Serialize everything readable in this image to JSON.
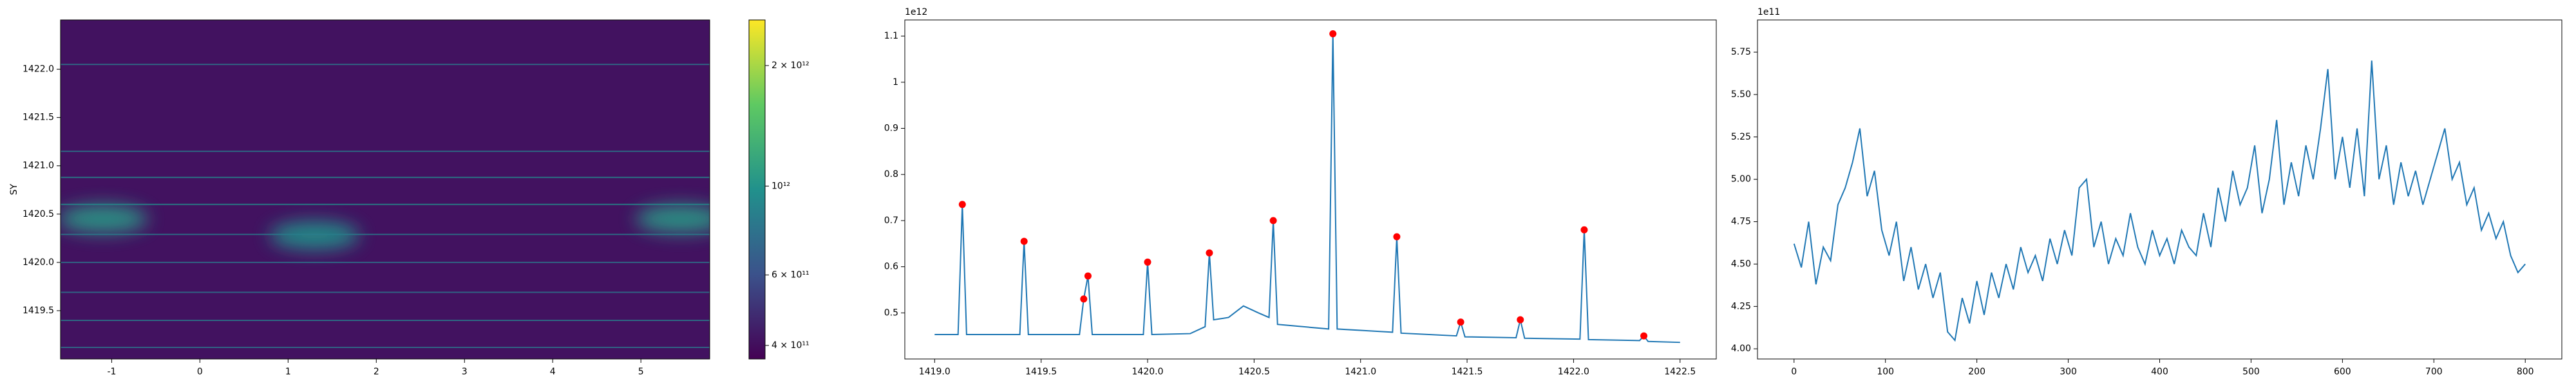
{
  "chart_data": [
    {
      "type": "heatmap",
      "ylabel": "SY",
      "xlim": [
        -1.58,
        5.78
      ],
      "ylim": [
        1419.0,
        1422.51
      ],
      "xticks": [
        -1,
        0,
        1,
        2,
        3,
        4,
        5
      ],
      "yticks": [
        {
          "value": 1419.5,
          "label": "1419.5"
        },
        {
          "value": 1420.0,
          "label": "1420.0"
        },
        {
          "value": 1420.5,
          "label": "1420.5"
        },
        {
          "value": 1421.0,
          "label": "1421.0"
        },
        {
          "value": 1421.5,
          "label": "1421.5"
        },
        {
          "value": 1422.0,
          "label": "1422.0"
        }
      ],
      "background": 410000000000,
      "lines": [
        {
          "y": 1422.05,
          "value": 800000000000
        },
        {
          "y": 1421.15,
          "value": 850000000000
        },
        {
          "y": 1420.88,
          "value": 900000000000
        },
        {
          "y": 1420.6,
          "value": 950000000000
        },
        {
          "y": 1420.29,
          "value": 850000000000
        },
        {
          "y": 1420.0,
          "value": 800000000000
        },
        {
          "y": 1419.69,
          "value": 800000000000
        },
        {
          "y": 1419.4,
          "value": 850000000000
        },
        {
          "y": 1419.12,
          "value": 800000000000
        }
      ],
      "blobs": [
        {
          "x": -1.1,
          "y": 1420.45,
          "value": 1050000000000
        },
        {
          "x": 1.3,
          "y": 1420.28,
          "value": 1000000000000
        },
        {
          "x": 5.45,
          "y": 1420.45,
          "value": 1050000000000
        }
      ],
      "colorbar": {
        "lim": [
          370000000000,
          2600000000000
        ],
        "scale": "log",
        "ticks": [
          {
            "value": 400000000000,
            "label": "4 × 10¹¹"
          },
          {
            "value": 600000000000,
            "label": "6 × 10¹¹"
          },
          {
            "value": 1000000000000,
            "label": "10¹²"
          },
          {
            "value": 2000000000000,
            "label": "2 × 10¹²"
          }
        ]
      }
    },
    {
      "type": "line",
      "color": "#1f77b4",
      "marker_color": "#ff0000",
      "y_offset_label": "1e12",
      "xlim": [
        1418.86,
        1422.67
      ],
      "ylim": [
        0.4,
        1.135
      ],
      "xticks": [
        {
          "value": 1419.0,
          "label": "1419.0"
        },
        {
          "value": 1419.5,
          "label": "1419.5"
        },
        {
          "value": 1420.0,
          "label": "1420.0"
        },
        {
          "value": 1420.5,
          "label": "1420.5"
        },
        {
          "value": 1421.0,
          "label": "1421.0"
        },
        {
          "value": 1421.5,
          "label": "1421.5"
        },
        {
          "value": 1422.0,
          "label": "1422.0"
        },
        {
          "value": 1422.5,
          "label": "1422.5"
        }
      ],
      "yticks": [
        0.5,
        0.6,
        0.7,
        0.8,
        0.9,
        1.0,
        1.1
      ],
      "x": [
        1419.0,
        1419.11,
        1419.13,
        1419.15,
        1419.4,
        1419.42,
        1419.44,
        1419.68,
        1419.7,
        1419.72,
        1419.74,
        1419.98,
        1420.0,
        1420.02,
        1420.2,
        1420.27,
        1420.29,
        1420.31,
        1420.38,
        1420.45,
        1420.52,
        1420.57,
        1420.59,
        1420.61,
        1420.85,
        1420.87,
        1420.89,
        1421.15,
        1421.17,
        1421.19,
        1421.45,
        1421.47,
        1421.49,
        1421.73,
        1421.75,
        1421.77,
        1422.03,
        1422.05,
        1422.07,
        1422.31,
        1422.33,
        1422.35,
        1422.5
      ],
      "values": [
        0.453,
        0.453,
        0.735,
        0.453,
        0.453,
        0.655,
        0.453,
        0.453,
        0.53,
        0.58,
        0.453,
        0.453,
        0.61,
        0.453,
        0.455,
        0.47,
        0.63,
        0.485,
        0.49,
        0.515,
        0.5,
        0.49,
        0.7,
        0.475,
        0.465,
        1.105,
        0.465,
        0.458,
        0.665,
        0.456,
        0.45,
        0.48,
        0.448,
        0.446,
        0.485,
        0.445,
        0.443,
        0.68,
        0.442,
        0.44,
        0.45,
        0.438,
        0.436
      ],
      "peaks": {
        "x": [
          1419.13,
          1419.42,
          1419.7,
          1419.72,
          1420.0,
          1420.29,
          1420.59,
          1420.87,
          1421.17,
          1421.47,
          1421.75,
          1422.05,
          1422.33
        ],
        "values": [
          0.735,
          0.655,
          0.53,
          0.58,
          0.61,
          0.63,
          0.7,
          1.105,
          0.665,
          0.48,
          0.485,
          0.68,
          0.45
        ]
      }
    },
    {
      "type": "line",
      "color": "#1f77b4",
      "y_offset_label": "1e11",
      "xlim": [
        -40,
        840
      ],
      "ylim": [
        3.94,
        5.94
      ],
      "xticks": [
        0,
        100,
        200,
        300,
        400,
        500,
        600,
        700,
        800
      ],
      "yticks": [
        {
          "value": 4.0,
          "label": "4.00"
        },
        {
          "value": 4.25,
          "label": "4.25"
        },
        {
          "value": 4.5,
          "label": "4.50"
        },
        {
          "value": 4.75,
          "label": "4.75"
        },
        {
          "value": 5.0,
          "label": "5.00"
        },
        {
          "value": 5.25,
          "label": "5.25"
        },
        {
          "value": 5.5,
          "label": "5.50"
        },
        {
          "value": 5.75,
          "label": "5.75"
        }
      ],
      "x": [
        0,
        8,
        16,
        24,
        32,
        40,
        48,
        56,
        64,
        72,
        80,
        88,
        96,
        104,
        112,
        120,
        128,
        136,
        144,
        152,
        160,
        168,
        176,
        184,
        192,
        200,
        208,
        216,
        224,
        232,
        240,
        248,
        256,
        264,
        272,
        280,
        288,
        296,
        304,
        312,
        320,
        328,
        336,
        344,
        352,
        360,
        368,
        376,
        384,
        392,
        400,
        408,
        416,
        424,
        432,
        440,
        448,
        456,
        464,
        472,
        480,
        488,
        496,
        504,
        512,
        520,
        528,
        536,
        544,
        552,
        560,
        568,
        576,
        584,
        592,
        600,
        608,
        616,
        624,
        632,
        640,
        648,
        656,
        664,
        672,
        680,
        688,
        696,
        704,
        712,
        720,
        728,
        736,
        744,
        752,
        760,
        768,
        776,
        784,
        792,
        800
      ],
      "values": [
        4.62,
        4.48,
        4.75,
        4.38,
        4.6,
        4.52,
        4.85,
        4.95,
        5.1,
        5.3,
        4.9,
        5.05,
        4.7,
        4.55,
        4.75,
        4.4,
        4.6,
        4.35,
        4.5,
        4.3,
        4.45,
        4.1,
        4.05,
        4.3,
        4.15,
        4.4,
        4.2,
        4.45,
        4.3,
        4.5,
        4.35,
        4.6,
        4.45,
        4.55,
        4.4,
        4.65,
        4.5,
        4.7,
        4.55,
        4.95,
        5.0,
        4.6,
        4.75,
        4.5,
        4.65,
        4.55,
        4.8,
        4.6,
        4.5,
        4.7,
        4.55,
        4.65,
        4.5,
        4.7,
        4.6,
        4.55,
        4.8,
        4.6,
        4.95,
        4.75,
        5.05,
        4.85,
        4.95,
        5.2,
        4.8,
        5.0,
        5.35,
        4.85,
        5.1,
        4.9,
        5.2,
        5.0,
        5.3,
        5.65,
        5.0,
        5.25,
        4.95,
        5.3,
        4.9,
        5.7,
        5.0,
        5.2,
        4.85,
        5.1,
        4.9,
        5.05,
        4.85,
        5.0,
        5.15,
        5.3,
        5.0,
        5.1,
        4.85,
        4.95,
        4.7,
        4.8,
        4.65,
        4.75,
        4.55,
        4.45,
        4.5
      ]
    }
  ]
}
